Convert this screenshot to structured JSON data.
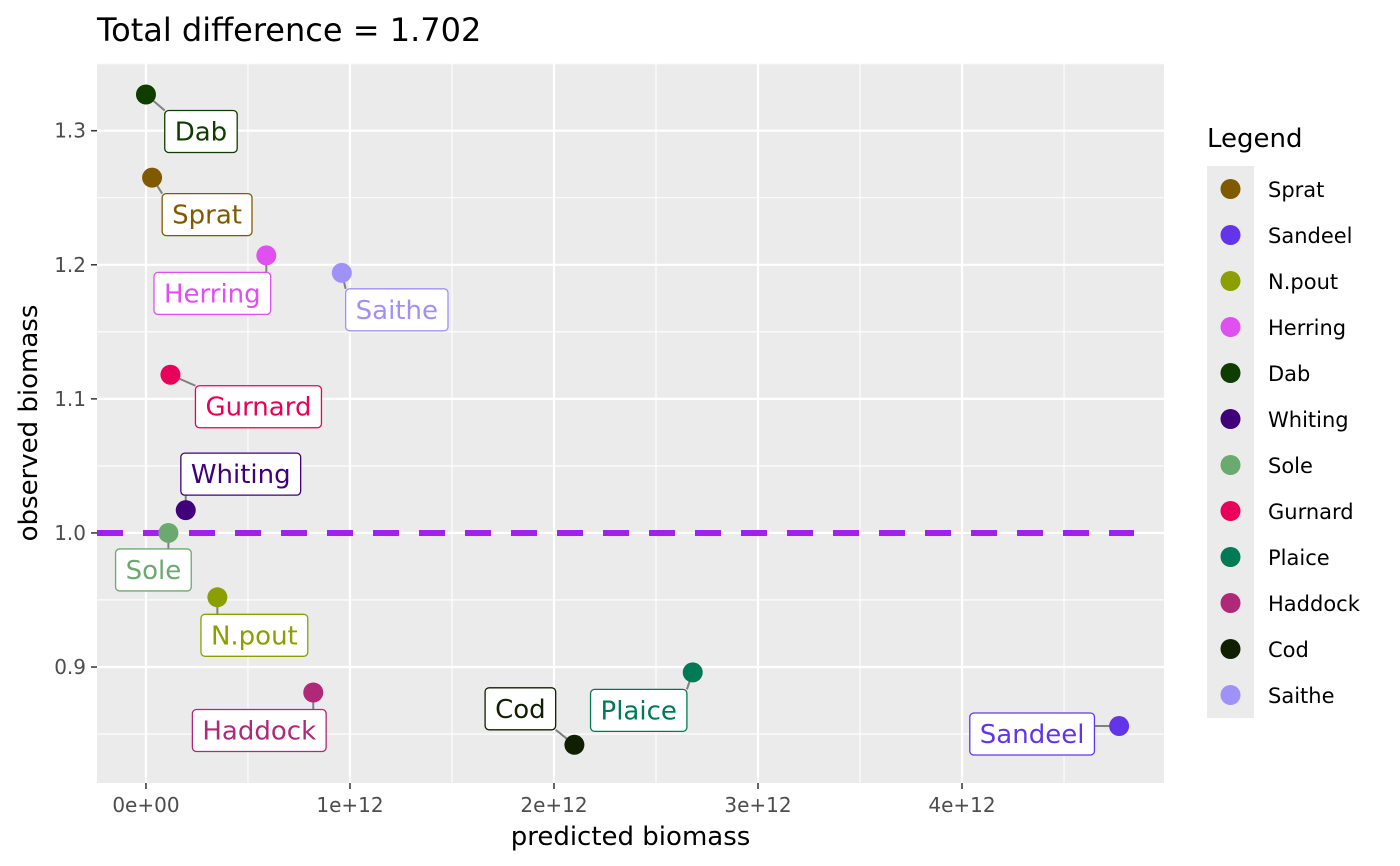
{
  "chart_data": {
    "type": "scatter",
    "title": "Total difference = 1.702",
    "xlabel": "predicted biomass",
    "ylabel": "observed biomass",
    "xlim": [
      -240000000000.0,
      4990000000000.0
    ],
    "ylim": [
      0.8135,
      1.3505
    ],
    "x_ticks": [
      0,
      1000000000000.0,
      2000000000000.0,
      3000000000000.0,
      4000000000000.0
    ],
    "x_tick_labels": [
      "0e+00",
      "1e+12",
      "2e+12",
      "3e+12",
      "4e+12"
    ],
    "y_ticks": [
      0.9,
      1.0,
      1.1,
      1.2,
      1.3
    ],
    "y_tick_labels": [
      "0.9",
      "1.0",
      "1.1",
      "1.2",
      "1.3"
    ],
    "grid": true,
    "reference_line": {
      "y": 1.0,
      "style": "dashed",
      "color": "#a020f0"
    },
    "legend": {
      "title": "Legend",
      "placement": "right"
    },
    "points": [
      {
        "name": "Sprat",
        "x": 30000000000.0,
        "y": 1.265,
        "color": "#7f5a00",
        "label_dx": 55,
        "label_dy": 37
      },
      {
        "name": "Sandeel",
        "x": 4770000000000.0,
        "y": 0.856,
        "color": "#6236e8",
        "label_dx": -87,
        "label_dy": 8
      },
      {
        "name": "N.pout",
        "x": 350000000000.0,
        "y": 0.952,
        "color": "#8ba000",
        "label_dx": 37,
        "label_dy": 38
      },
      {
        "name": "Herring",
        "x": 590000000000.0,
        "y": 1.207,
        "color": "#e050f0",
        "label_dx": -54,
        "label_dy": 38
      },
      {
        "name": "Dab",
        "x": 0,
        "y": 1.327,
        "color": "#0f3d00",
        "label_dx": 55,
        "label_dy": 37
      },
      {
        "name": "Whiting",
        "x": 195000000000.0,
        "y": 1.017,
        "color": "#40007a",
        "label_dx": 55,
        "label_dy": -36
      },
      {
        "name": "Sole",
        "x": 110000000000.0,
        "y": 1.0,
        "color": "#6aaa6e",
        "label_dx": -15,
        "label_dy": 37
      },
      {
        "name": "Gurnard",
        "x": 120000000000.0,
        "y": 1.118,
        "color": "#e8005a",
        "label_dx": 88,
        "label_dy": 32
      },
      {
        "name": "Plaice",
        "x": 2680000000000.0,
        "y": 0.896,
        "color": "#007a55",
        "label_dx": -54,
        "label_dy": 38
      },
      {
        "name": "Haddock",
        "x": 820000000000.0,
        "y": 0.881,
        "color": "#b02878",
        "label_dx": -54,
        "label_dy": 38
      },
      {
        "name": "Cod",
        "x": 2100000000000.0,
        "y": 0.842,
        "color": "#101f00",
        "label_dx": -54,
        "label_dy": -36
      },
      {
        "name": "Saithe",
        "x": 960000000000.0,
        "y": 1.194,
        "color": "#a091f8",
        "label_dx": 55,
        "label_dy": 37
      }
    ]
  }
}
